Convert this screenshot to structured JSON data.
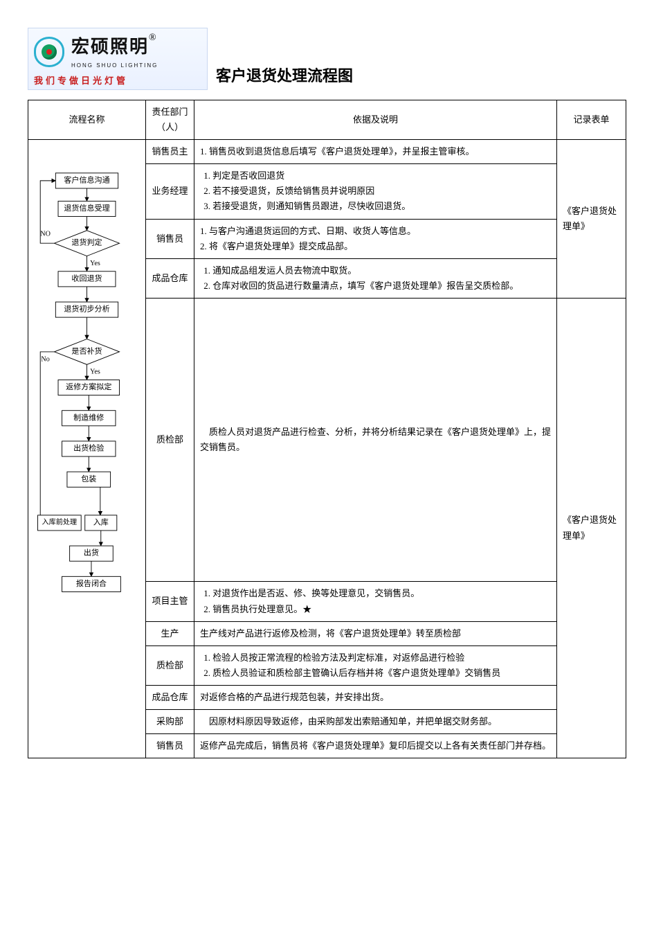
{
  "brand": {
    "cn": "宏硕照明",
    "en": "HONG SHUO LIGHTING",
    "reg": "®",
    "slogan": "我们专做日光灯管"
  },
  "title": "客户退货处理流程图",
  "columns": {
    "flow": "流程名称",
    "dept": "责任部门（人）",
    "desc": "依据及说明",
    "record": "记录表单"
  },
  "record_form": "《客户退货处理单》",
  "flow": {
    "n1": "客户信息沟通",
    "n2": "退货信息受理",
    "d1": "退货判定",
    "d1_no": "NO",
    "d1_yes": "Yes",
    "n3": "收回退货",
    "n4": "退货初步分析",
    "d2": "是否补货",
    "d2_no": "No",
    "d2_yes": "Yes",
    "n5": "返修方案拟定",
    "n6": "制造维修",
    "n7": "出货检验",
    "n8": "包装",
    "n9a": "入库前处理",
    "n9b": "入库",
    "n10": "出货",
    "n11": "报告闭合"
  },
  "rows": [
    {
      "dept": "销售员主",
      "desc_html": "1. 销售员收到退货信息后填写《客户退货处理单》，并呈报主管审核。"
    },
    {
      "dept": "业务经理",
      "desc_list": [
        "判定是否收回退货",
        "若不接受退货，反馈给销售员并说明原因",
        "若接受退货，则通知销售员跟进，尽快收回退货。"
      ]
    },
    {
      "dept": "销售员",
      "desc_html": "1. 与客户沟通退货运回的方式、日期、收货人等信息。\n2. 将《客户退货处理单》提交成品部。"
    },
    {
      "dept": "成品仓库",
      "desc_list": [
        "通知成品组发运人员去物流中取货。",
        "仓库对收回的货品进行数量清点，填写《客户退货处理单》报告呈交质检部。"
      ]
    },
    {
      "dept": "质检部",
      "desc_html": "　质检人员对退货产品进行检查、分析，并将分析结果记录在《客户退货处理单》上，提交销售员。"
    },
    {
      "dept": "项目主管",
      "desc_list": [
        "对退货作出是否返、修、换等处理意见，交销售员。",
        "销售员执行处理意见。★"
      ]
    },
    {
      "dept": "生产",
      "desc_html": "生产线对产品进行返修及检测，将《客户退货处理单》转至质检部"
    },
    {
      "dept": "质检部",
      "desc_list": [
        "检验人员按正常流程的检验方法及判定标准，对返修品进行检验",
        "质检人员验证和质检部主管确认后存档并将《客户退货处理单》交销售员"
      ]
    },
    {
      "dept": "成品仓库",
      "desc_html": "对返修合格的产品进行规范包装，并安排出货。"
    },
    {
      "dept": "采购部",
      "desc_html": "　因原材料原因导致返修，由采购部发出索赔通知单，并把单据交财务部。"
    },
    {
      "dept": "销售员",
      "desc_html": "返修产品完成后，销售员将《客户退货处理单》复印后提交以上各有关责任部门并存档。"
    }
  ],
  "record_span1_rows": 4,
  "record_span2_rows": 7
}
